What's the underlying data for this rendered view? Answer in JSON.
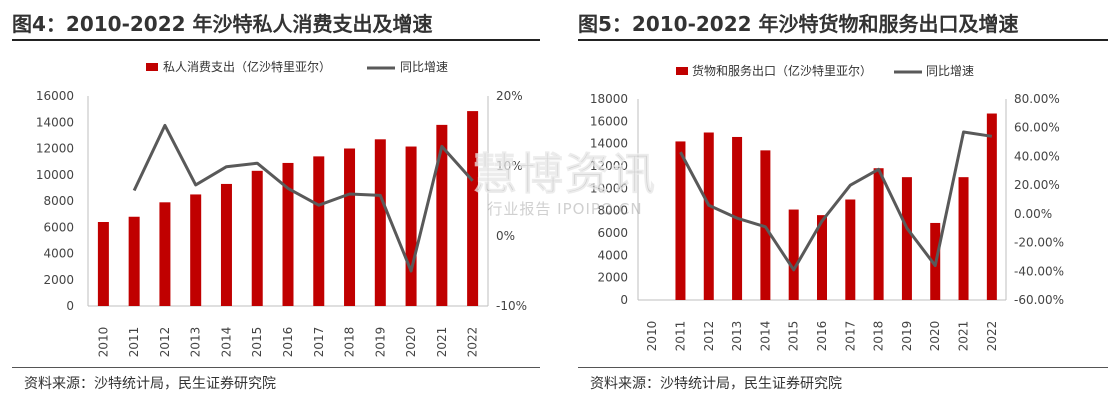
{
  "charts": [
    {
      "title": "图4：2010-2022 年沙特私人消费支出及增速",
      "source": "资料来源：沙特统计局，民生证券研究院",
      "chart_data": {
        "type": "bar+line",
        "categories": [
          "2010",
          "2011",
          "2012",
          "2013",
          "2014",
          "2015",
          "2016",
          "2017",
          "2018",
          "2019",
          "2020",
          "2021",
          "2022"
        ],
        "series": [
          {
            "name": "私人消费支出（亿沙特里亚尔）",
            "type": "bar",
            "axis": "left",
            "values": [
              6400,
              6800,
              7900,
              8500,
              9300,
              10300,
              10900,
              11400,
              12000,
              12700,
              12150,
              13800,
              14850
            ]
          },
          {
            "name": "同比增速",
            "type": "line",
            "axis": "right",
            "values": [
              null,
              6.5,
              15.8,
              7.3,
              9.9,
              10.4,
              6.8,
              4.4,
              6.0,
              5.8,
              -5.0,
              12.8,
              7.9
            ]
          }
        ],
        "y_left": {
          "min": 0,
          "max": 16000,
          "step": 2000,
          "ticks": [
            "0",
            "2000",
            "4000",
            "6000",
            "8000",
            "10000",
            "12000",
            "14000",
            "16000"
          ]
        },
        "y_right": {
          "min": -10,
          "max": 20,
          "step": 10,
          "ticks": [
            "-10%",
            "0%",
            "10%",
            "20%"
          ]
        },
        "grid": false,
        "legend_position": "top"
      },
      "colors": {
        "bar": "#c00000",
        "line": "#595959"
      }
    },
    {
      "title": "图5：2010-2022 年沙特货物和服务出口及增速",
      "source": "资料来源：沙特统计局，民生证券研究院",
      "chart_data": {
        "type": "bar+line",
        "categories": [
          "2010",
          "2011",
          "2012",
          "2013",
          "2014",
          "2015",
          "2016",
          "2017",
          "2018",
          "2019",
          "2020",
          "2021",
          "2022"
        ],
        "series": [
          {
            "name": "货物和服务出口（亿沙特里亚尔）",
            "type": "bar",
            "axis": "left",
            "values": [
              null,
              14200,
              15000,
              14600,
              13400,
              8100,
              7600,
              9000,
              11800,
              11000,
              6900,
              11000,
              16700
            ]
          },
          {
            "name": "同比增速",
            "type": "line",
            "axis": "right",
            "values": [
              null,
              43,
              6,
              -3,
              -9,
              -39,
              -5,
              20,
              31,
              -10,
              -36,
              57,
              54
            ]
          }
        ],
        "y_left": {
          "min": 0,
          "max": 18000,
          "step": 2000,
          "ticks": [
            "0",
            "2000",
            "4000",
            "6000",
            "8000",
            "10000",
            "12000",
            "14000",
            "16000",
            "18000"
          ]
        },
        "y_right": {
          "min": -60,
          "max": 80,
          "step": 20,
          "ticks": [
            "-60.00%",
            "-40.00%",
            "-20.00%",
            "0.00%",
            "20.00%",
            "40.00%",
            "60.00%",
            "80.00%"
          ]
        },
        "grid": false,
        "legend_position": "top"
      },
      "colors": {
        "bar": "#c00000",
        "line": "#595959"
      }
    }
  ],
  "watermark": {
    "main": "慧博资讯",
    "sub": "行业报告 IPOIPO.CN"
  }
}
